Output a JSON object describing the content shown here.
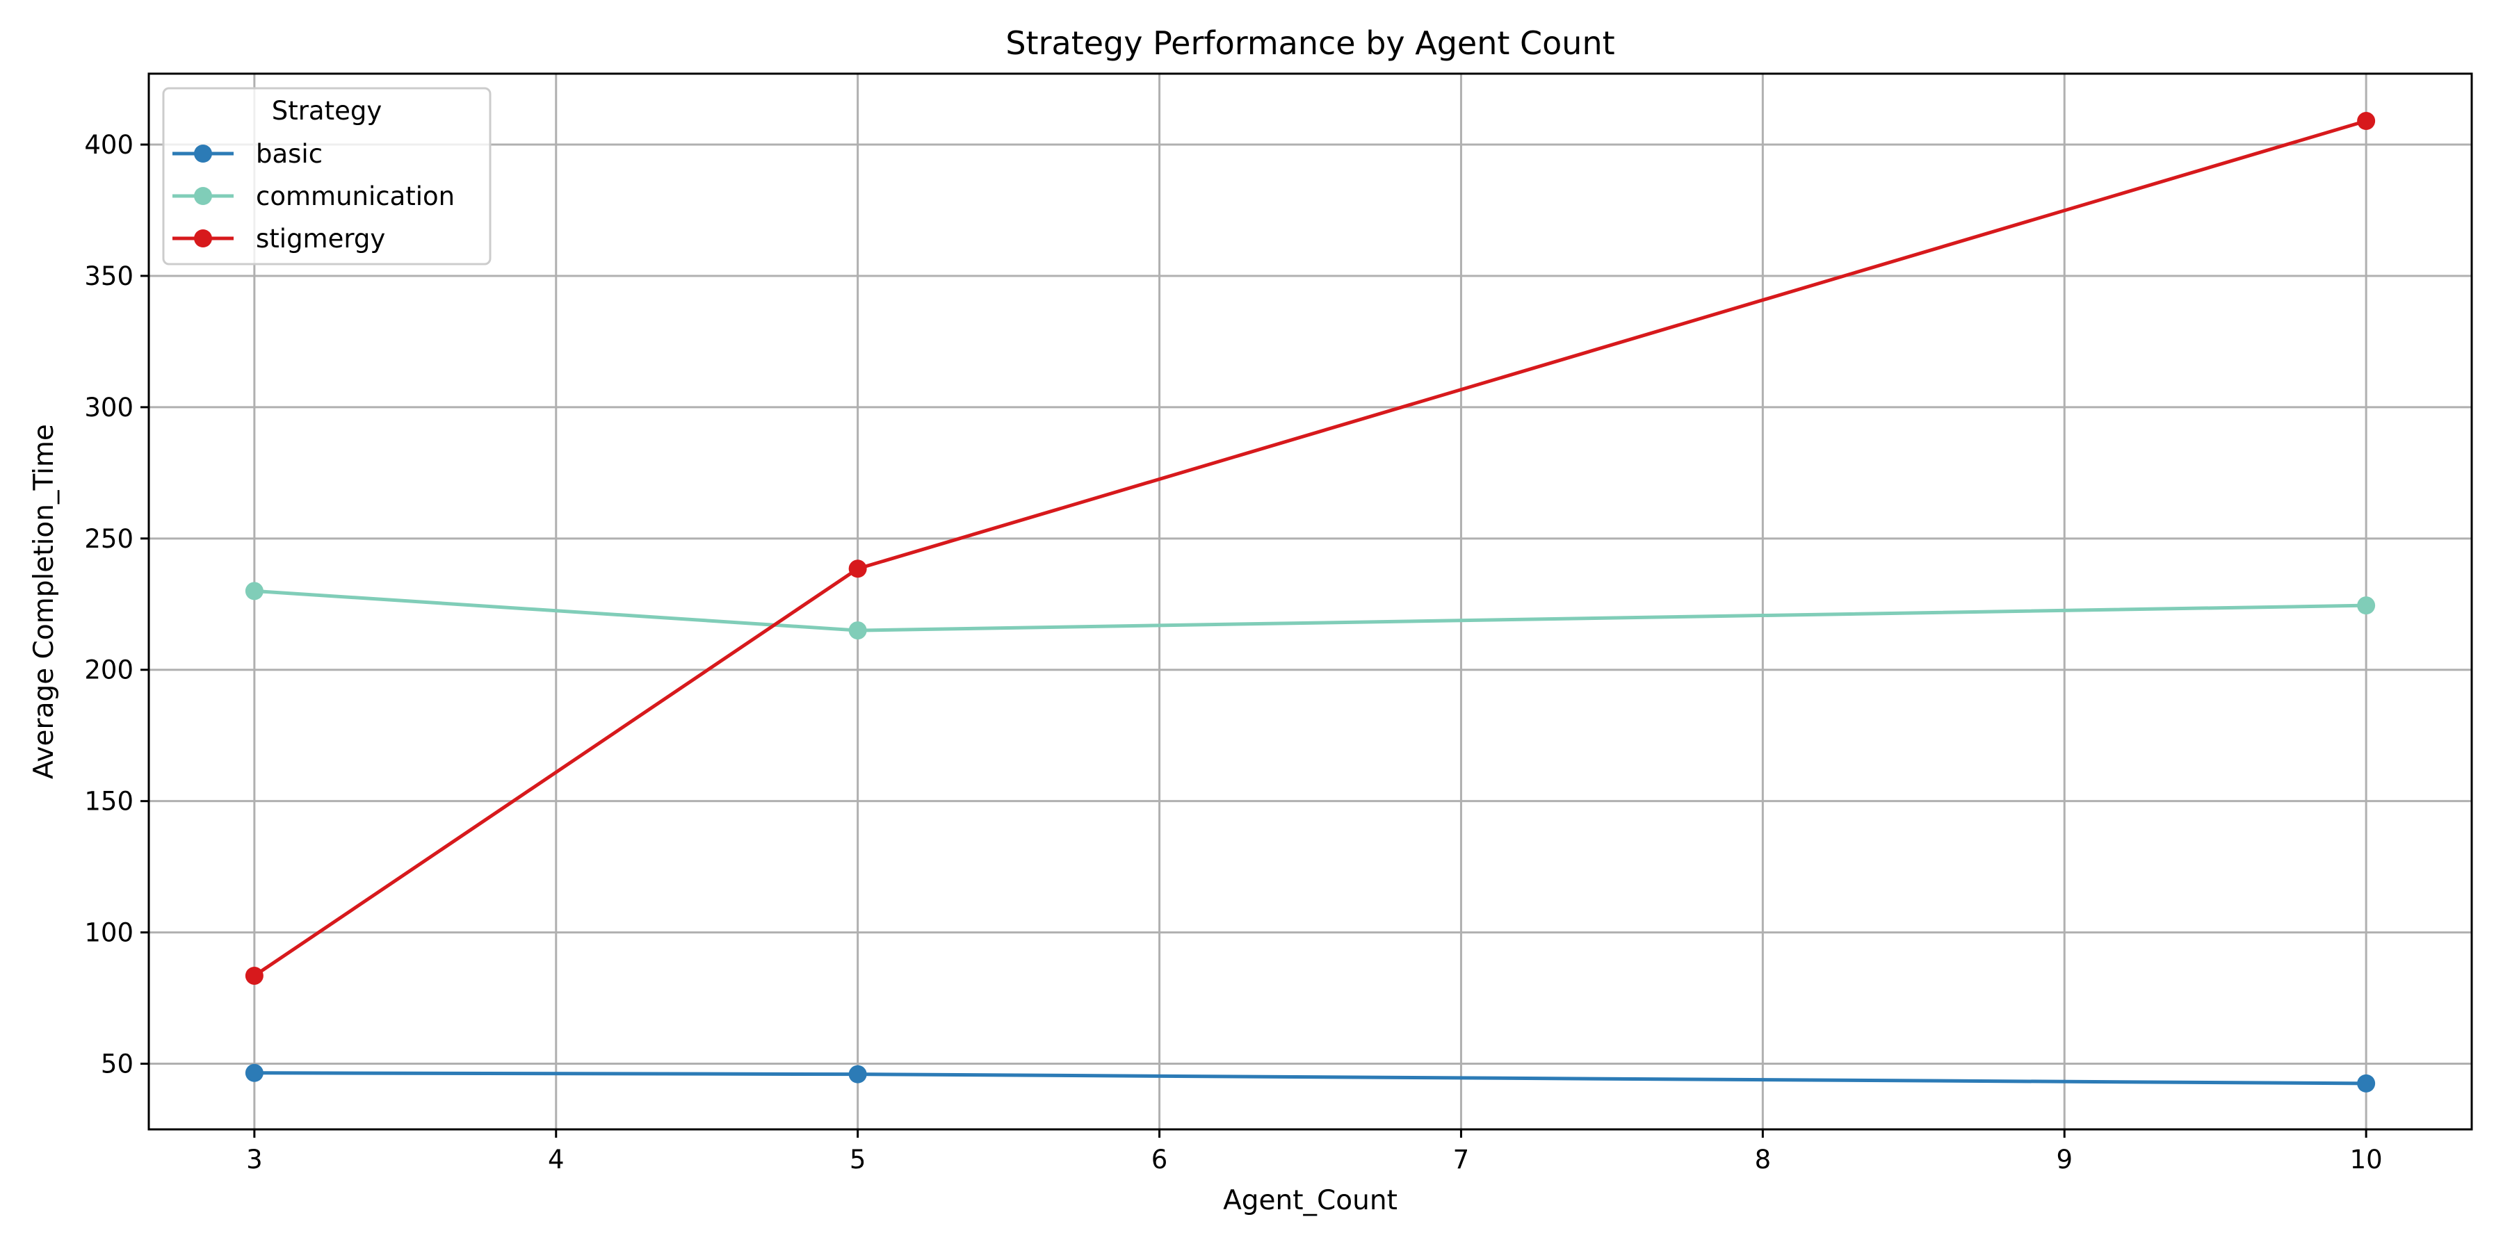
{
  "chart_data": {
    "type": "line",
    "title": "Strategy Performance by Agent Count",
    "xlabel": "Agent_Count",
    "ylabel": "Average Completion_Time",
    "xlim": [
      2.65,
      10.35
    ],
    "ylim": [
      25,
      427
    ],
    "xticks": [
      3,
      4,
      5,
      6,
      7,
      8,
      9,
      10
    ],
    "yticks": [
      50,
      100,
      150,
      200,
      250,
      300,
      350,
      400
    ],
    "grid": true,
    "legend": {
      "title": "Strategy",
      "position": "top-left"
    },
    "x": [
      3,
      5,
      10
    ],
    "series": [
      {
        "name": "basic",
        "color": "#2c7bb6",
        "values": [
          46.5,
          46,
          42.5
        ]
      },
      {
        "name": "communication",
        "color": "#80cdb8",
        "values": [
          230,
          215,
          224.5
        ]
      },
      {
        "name": "stigmergy",
        "color": "#d7191c",
        "values": [
          83.5,
          238.5,
          409
        ]
      }
    ]
  }
}
